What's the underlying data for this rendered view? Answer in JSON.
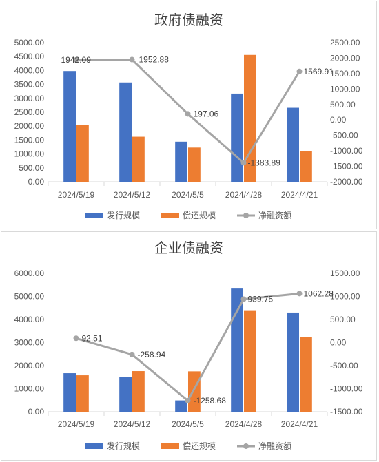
{
  "colors": {
    "issuance": "#4472c4",
    "repayment": "#ed7d31",
    "net": "#a5a5a5",
    "tick_line": "#d9d9d9",
    "text": "#595959"
  },
  "chart_data": [
    {
      "type": "bar",
      "title": "政府债融资",
      "categories": [
        "2024/5/19",
        "2024/5/12",
        "2024/5/5",
        "2024/4/28",
        "2024/4/21"
      ],
      "series": [
        {
          "name": "发行规模",
          "kind": "bar",
          "axis": "left",
          "values": [
            3980,
            3570,
            1440,
            3170,
            2660
          ]
        },
        {
          "name": "偿还规模",
          "kind": "bar",
          "axis": "left",
          "values": [
            2030,
            1620,
            1230,
            4560,
            1090
          ]
        },
        {
          "name": "净融资额",
          "kind": "line",
          "axis": "right",
          "values": [
            1942.09,
            1952.88,
            197.06,
            -1383.89,
            1569.91
          ]
        }
      ],
      "data_labels": [
        "1942.09",
        "1952.88",
        "197.06",
        "-1383.89",
        "1569.91"
      ],
      "ylim_left": [
        0,
        5000
      ],
      "yticks_left": [
        "0.00",
        "500.00",
        "1000.00",
        "1500.00",
        "2000.00",
        "2500.00",
        "3000.00",
        "3500.00",
        "4000.00",
        "4500.00",
        "5000.00"
      ],
      "ylim_right": [
        -2000,
        2500
      ],
      "yticks_right": [
        "-2000.00",
        "-1500.00",
        "-1000.00",
        "-500.00",
        "0.00",
        "500.00",
        "1000.00",
        "1500.00",
        "2000.00",
        "2500.00"
      ],
      "grid": false,
      "legend": "bottom"
    },
    {
      "type": "bar",
      "title": "企业债融资",
      "categories": [
        "2024/5/19",
        "2024/5/12",
        "2024/5/5",
        "2024/4/28",
        "2024/4/21"
      ],
      "series": [
        {
          "name": "发行规模",
          "kind": "bar",
          "axis": "left",
          "values": [
            1670,
            1500,
            490,
            5340,
            4300
          ]
        },
        {
          "name": "偿还规模",
          "kind": "bar",
          "axis": "left",
          "values": [
            1580,
            1760,
            1750,
            4400,
            3240
          ]
        },
        {
          "name": "净融资额",
          "kind": "line",
          "axis": "right",
          "values": [
            92.51,
            -258.94,
            -1258.68,
            939.75,
            1062.28
          ]
        }
      ],
      "data_labels": [
        "92.51",
        "-258.94",
        "-1258.68",
        "939.75",
        "1062.28"
      ],
      "ylim_left": [
        0,
        6000
      ],
      "yticks_left": [
        "0.00",
        "1000.00",
        "2000.00",
        "3000.00",
        "4000.00",
        "5000.00",
        "6000.00"
      ],
      "ylim_right": [
        -1500,
        1500
      ],
      "yticks_right": [
        "-1500.00",
        "-1000.00",
        "-500.00",
        "0.00",
        "500.00",
        "1000.00",
        "1500.00"
      ],
      "grid": false,
      "legend": "bottom"
    }
  ]
}
